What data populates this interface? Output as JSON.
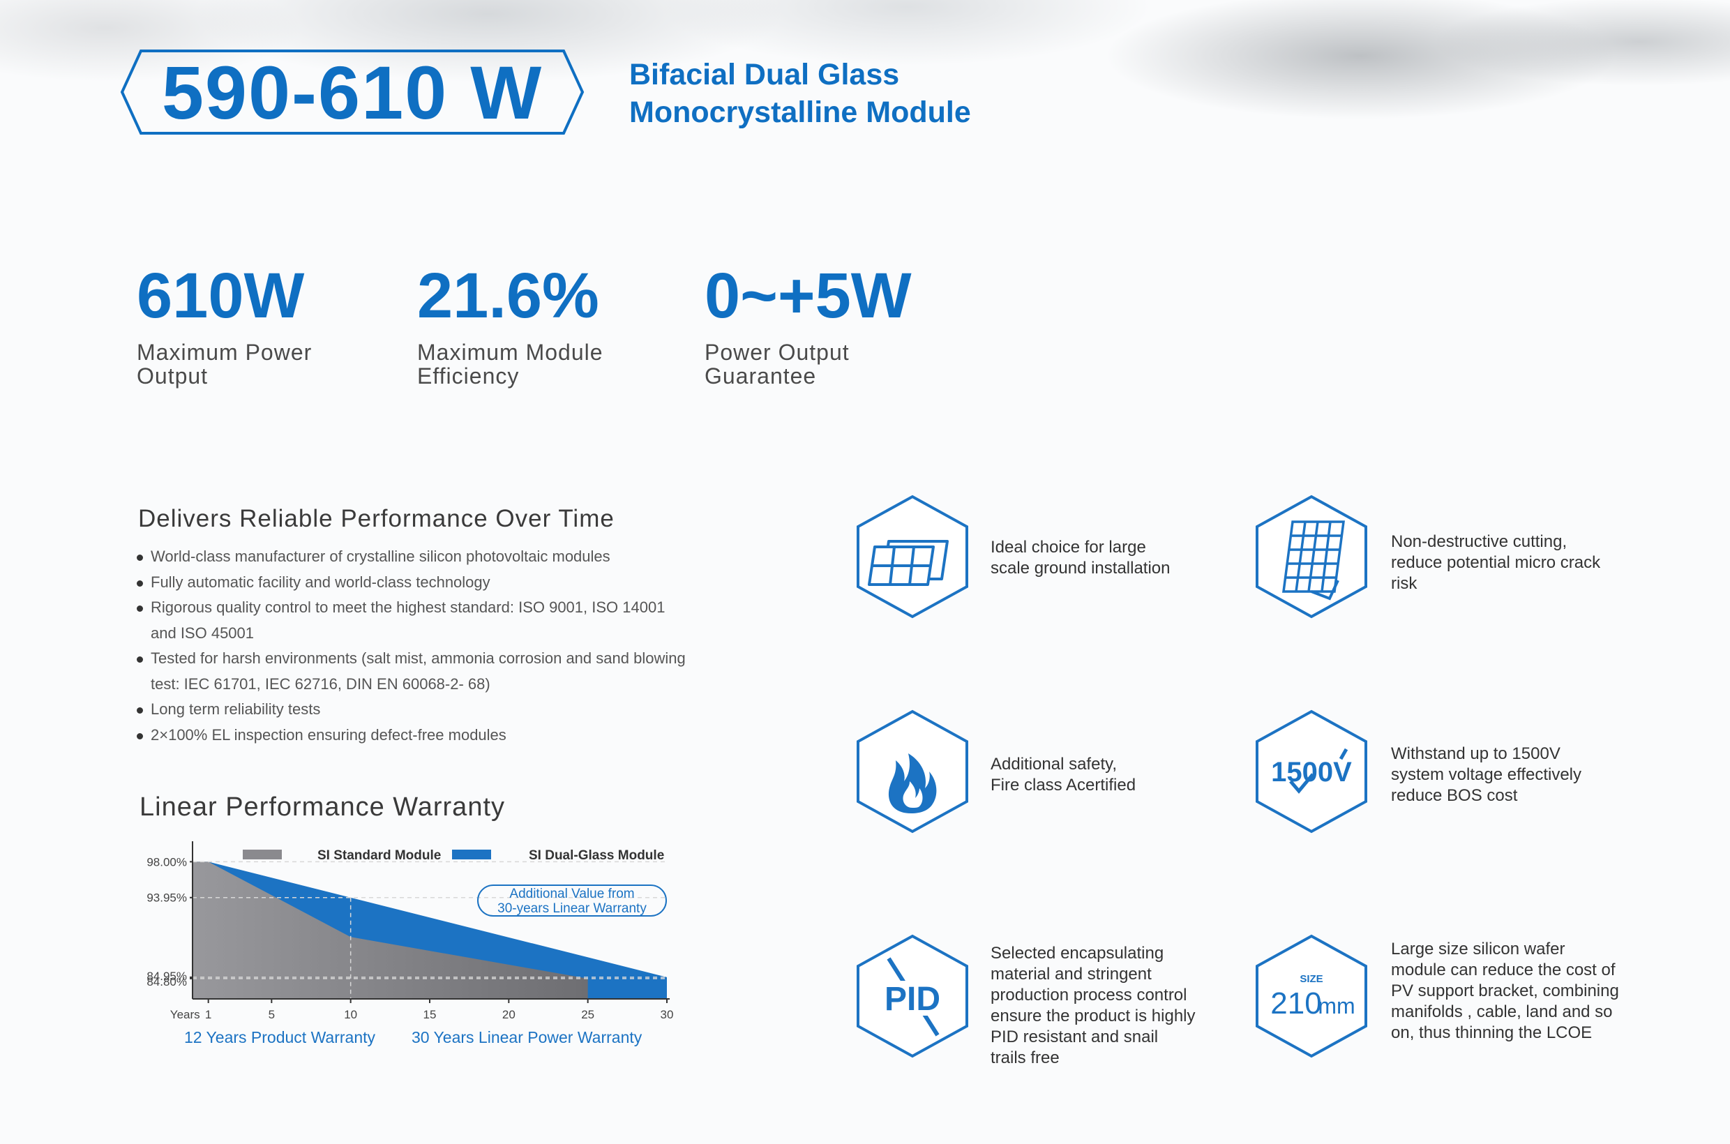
{
  "header": {
    "power_range": "590-610 W",
    "subtitle_line1": "Bifacial Dual Glass",
    "subtitle_line2": "Monocrystalline Module"
  },
  "specs": [
    {
      "value": "610W",
      "label_line1": "Maximum Power",
      "label_line2": "Output"
    },
    {
      "value": "21.6%",
      "label_line1": "Maximum Module",
      "label_line2": "Efficiency"
    },
    {
      "value": "0~+5W",
      "label_line1": "Power Output",
      "label_line2": "Guarantee"
    }
  ],
  "performance": {
    "heading": "Delivers Reliable Performance Over Time",
    "bullets": [
      "World-class manufacturer of crystalline silicon photovoltaic modules",
      "Fully automatic facility and world-class technology",
      "Rigorous quality control to meet the highest standard: ISO 9001, ISO 14001 and ISO 45001",
      "Tested for harsh environments (salt mist, ammonia corrosion and sand blowing test: IEC 61701, IEC 62716, DIN EN 60068-2- 68)",
      "Long term reliability tests",
      "2×100% EL inspection ensuring defect-free modules"
    ]
  },
  "warranty": {
    "heading": "Linear Performance Warranty",
    "note_line1": "Additional Value from",
    "note_line2": "30-years Linear Warranty",
    "product_warranty": "12 Years Product Warranty",
    "power_warranty": "30 Years Linear Power Warranty",
    "x_axis_prefix": "Years"
  },
  "chart_data": {
    "type": "area",
    "x": [
      1,
      5,
      10,
      15,
      20,
      25,
      30
    ],
    "x_ticks": [
      "1",
      "5",
      "10",
      "15",
      "20",
      "25",
      "30"
    ],
    "y_ticks": [
      "98.00%",
      "93.95%",
      "84.95%",
      "84.80%"
    ],
    "y_tick_values": [
      98.0,
      93.95,
      84.95,
      84.8
    ],
    "xlim": [
      0,
      30
    ],
    "ylim": [
      82.5,
      100
    ],
    "series": [
      {
        "name": "SI Standard Module",
        "color": "#8a8a8e",
        "points": [
          [
            1,
            98.0
          ],
          [
            10,
            89.5
          ],
          [
            25,
            84.8
          ]
        ]
      },
      {
        "name": "SI Dual-Glass Module",
        "color": "#1c73c3",
        "points": [
          [
            1,
            98.0
          ],
          [
            10,
            93.95
          ],
          [
            30,
            84.95
          ]
        ]
      }
    ],
    "legend_position": "top"
  },
  "features": [
    {
      "icon": "solar-array-icon",
      "lines": [
        "Ideal choice for large",
        "scale ground installation"
      ]
    },
    {
      "icon": "cut-cell-grid-icon",
      "lines": [
        "Non-destructive cutting,",
        "reduce potential micro crack",
        "risk"
      ]
    },
    {
      "icon": "flame-icon",
      "lines": [
        "Additional safety,",
        "Fire class Acertified"
      ]
    },
    {
      "icon": "voltage-1500v-icon",
      "icon_text": "1500V",
      "lines": [
        "Withstand up to 1500V",
        "system voltage effectively",
        "reduce BOS cost"
      ]
    },
    {
      "icon": "pid-icon",
      "icon_text": "PID",
      "lines": [
        "Selected encapsulating",
        "material and stringent",
        "production process control",
        "ensure the product is highly",
        "PID resistant and snail",
        "trails free"
      ]
    },
    {
      "icon": "wafer-size-icon",
      "icon_text_small": "SIZE",
      "icon_text": "210",
      "icon_unit": "mm",
      "lines": [
        "Large size silicon wafer",
        "module can reduce the cost of",
        "PV support bracket, combining",
        "manifolds , cable, land and so",
        "on, thus thinning the LCOE"
      ]
    }
  ],
  "colors": {
    "brand_blue": "#0f6fc2",
    "standard_gray": "#8a8a8e"
  }
}
